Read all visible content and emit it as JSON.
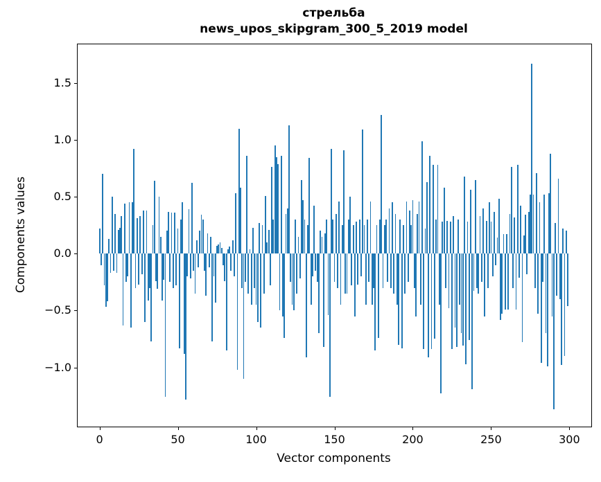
{
  "figure": {
    "background": "#ffffff",
    "text_color": "#000000"
  },
  "chart_data": {
    "type": "bar",
    "title": "стрельба",
    "subtitle": "news_upos_skipgram_300_5_2019 model",
    "xlabel": "Vector components",
    "ylabel": "Components values",
    "legend": "none",
    "grid": false,
    "bar_color": "#1f77b4",
    "n_components": 300,
    "xlim": [
      -14,
      314
    ],
    "ylim": [
      -1.52,
      1.84
    ],
    "xticks": [
      {
        "value": 0,
        "label": "0"
      },
      {
        "value": 50,
        "label": "50"
      },
      {
        "value": 100,
        "label": "100"
      },
      {
        "value": 150,
        "label": "150"
      },
      {
        "value": 200,
        "label": "200"
      },
      {
        "value": 250,
        "label": "250"
      },
      {
        "value": 300,
        "label": "300"
      }
    ],
    "yticks": [
      {
        "value": 1.5,
        "label": "1.5"
      },
      {
        "value": 1.0,
        "label": "1.0"
      },
      {
        "value": 0.5,
        "label": "0.5"
      },
      {
        "value": 0.0,
        "label": "0.0"
      },
      {
        "value": -0.5,
        "label": "−0.5"
      },
      {
        "value": -1.0,
        "label": "−1.0"
      }
    ],
    "values": [
      0.22,
      -0.1,
      0.7,
      -0.28,
      -0.47,
      -0.42,
      0.13,
      -0.17,
      0.5,
      -0.15,
      0.35,
      -0.17,
      0.21,
      0.23,
      0.33,
      -0.63,
      0.44,
      -0.25,
      -0.2,
      0.45,
      -0.65,
      0.45,
      0.92,
      -0.3,
      0.31,
      -0.27,
      0.33,
      -0.18,
      0.38,
      -0.6,
      0.38,
      -0.41,
      -0.3,
      -0.77,
      0.25,
      0.64,
      -0.24,
      -0.31,
      0.5,
      0.15,
      -0.41,
      -0.23,
      -1.26,
      0.2,
      0.37,
      -0.25,
      0.36,
      -0.3,
      0.36,
      -0.28,
      0.22,
      -0.83,
      0.3,
      0.45,
      -0.88,
      -1.28,
      -0.2,
      0.39,
      -0.22,
      0.62,
      -0.15,
      -0.35,
      0.12,
      -0.12,
      0.2,
      0.34,
      0.3,
      -0.15,
      -0.37,
      0.18,
      -0.12,
      0.15,
      -0.77,
      -0.2,
      -0.43,
      0.07,
      0.08,
      0.1,
      0.05,
      -0.1,
      -0.24,
      -0.85,
      0.04,
      0.06,
      -0.15,
      0.12,
      -0.2,
      0.53,
      -1.02,
      1.1,
      0.58,
      -0.3,
      -1.1,
      -0.25,
      0.86,
      -0.35,
      0.04,
      -0.45,
      0.23,
      -0.3,
      -0.45,
      -0.6,
      0.27,
      -0.65,
      0.25,
      -0.35,
      0.51,
      0.1,
      0.21,
      -0.28,
      0.76,
      0.3,
      0.95,
      0.85,
      0.79,
      -0.5,
      0.86,
      -0.55,
      -0.74,
      0.35,
      0.4,
      1.13,
      -0.25,
      -0.45,
      -0.5,
      0.3,
      -0.35,
      0.15,
      -0.22,
      0.65,
      0.47,
      0.3,
      -0.91,
      0.25,
      0.84,
      -0.45,
      -0.2,
      0.42,
      -0.15,
      -0.25,
      -0.7,
      0.2,
      0.15,
      -0.82,
      0.18,
      0.3,
      -0.54,
      -1.26,
      0.92,
      0.3,
      -0.25,
      0.35,
      -0.3,
      0.46,
      -0.45,
      0.25,
      0.91,
      -0.35,
      -0.35,
      0.3,
      0.5,
      -0.28,
      0.25,
      -0.55,
      0.28,
      -0.27,
      0.3,
      -0.2,
      1.09,
      0.25,
      -0.45,
      0.3,
      -0.25,
      0.46,
      -0.45,
      -0.3,
      -0.85,
      0.25,
      -0.74,
      0.3,
      1.22,
      -0.3,
      0.25,
      0.3,
      -0.25,
      0.4,
      -0.3,
      0.45,
      -0.35,
      0.35,
      -0.45,
      -0.8,
      0.3,
      -0.83,
      0.25,
      -0.35,
      0.46,
      -0.25,
      0.38,
      0.25,
      0.47,
      -0.3,
      -0.55,
      0.35,
      0.46,
      -0.45,
      0.99,
      -0.84,
      0.22,
      0.63,
      -0.91,
      0.86,
      -0.84,
      0.78,
      -0.75,
      0.3,
      0.78,
      -0.45,
      -1.23,
      0.28,
      0.58,
      -0.3,
      0.29,
      -0.48,
      0.28,
      -0.84,
      0.33,
      -0.65,
      -0.82,
      0.3,
      -0.45,
      -0.7,
      -0.81,
      0.68,
      -0.97,
      0.28,
      -0.76,
      0.56,
      -1.19,
      -0.33,
      0.65,
      -0.3,
      -0.35,
      0.33,
      -0.25,
      0.4,
      -0.55,
      0.29,
      -0.3,
      0.45,
      0.28,
      -0.2,
      0.37,
      -0.1,
      0.14,
      0.48,
      -0.58,
      -0.53,
      0.17,
      -0.49,
      0.17,
      -0.49,
      0.35,
      0.76,
      -0.3,
      0.32,
      -0.49,
      0.78,
      -0.21,
      0.42,
      -0.78,
      0.16,
      0.34,
      -0.18,
      0.37,
      0.52,
      1.67,
      0.52,
      -0.3,
      0.71,
      -0.53,
      0.45,
      -0.96,
      -0.25,
      0.52,
      -0.7,
      -0.99,
      0.53,
      0.88,
      -0.55,
      -1.37,
      0.27,
      -0.37,
      0.66,
      -0.4,
      -0.98,
      0.22,
      -0.9,
      0.2,
      -0.46
    ]
  }
}
